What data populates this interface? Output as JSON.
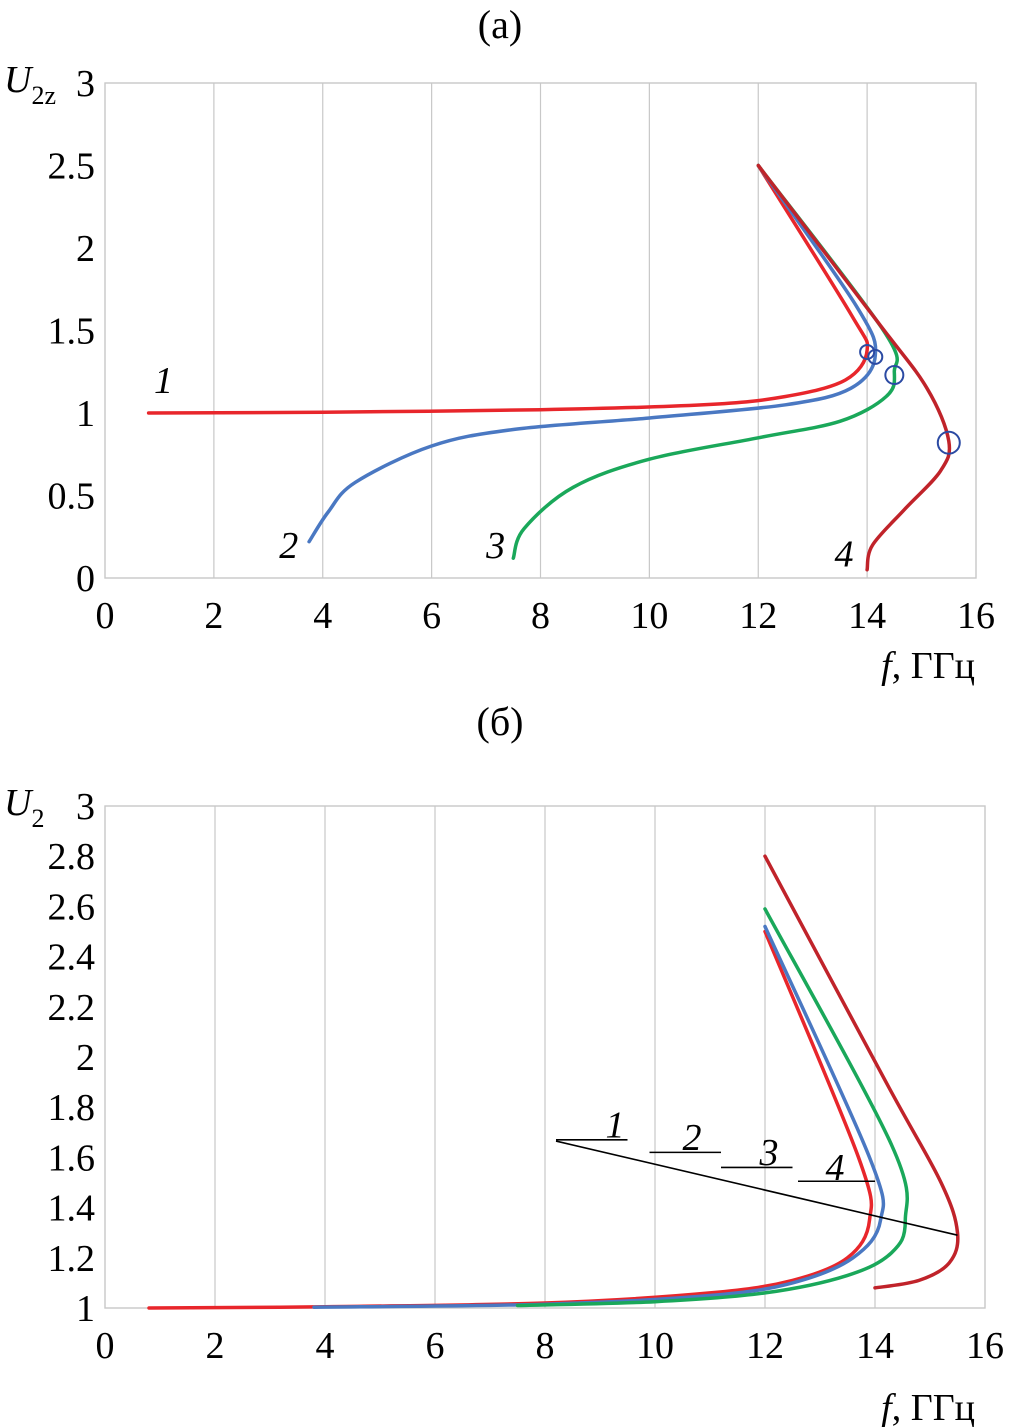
{
  "colors": {
    "series_1": "#e8262b",
    "series_2": "#4a78c2",
    "series_3": "#1aa85a",
    "series_4": "#c0232a",
    "grid": "#c8c8c8",
    "marker": "#2b4aa3",
    "leader": "#000000"
  },
  "chart_data": [
    {
      "type": "line",
      "panel_label": "(а)",
      "ylabel": {
        "main": "U",
        "sub": "2z"
      },
      "xlabel": {
        "main": "f",
        "rest": ", ГГц"
      },
      "xlim": [
        0,
        16
      ],
      "ylim": [
        0,
        3
      ],
      "x_ticks": [
        "0",
        "2",
        "4",
        "6",
        "8",
        "10",
        "12",
        "14",
        "16"
      ],
      "y_ticks": [
        "0",
        "0.5",
        "1",
        "1.5",
        "2",
        "2.5",
        "3"
      ],
      "grid": "vertical",
      "series": [
        {
          "label": "1",
          "label_at": [
            0.9,
            1.12
          ],
          "points": [
            [
              0.8,
              1.0
            ],
            [
              4,
              1.005
            ],
            [
              8,
              1.02
            ],
            [
              11,
              1.05
            ],
            [
              12.5,
              1.1
            ],
            [
              13.6,
              1.2
            ],
            [
              14.0,
              1.38
            ],
            [
              13.7,
              1.6
            ],
            [
              12,
              2.5
            ]
          ],
          "marker": [
            14.0,
            1.37
          ]
        },
        {
          "label": "2",
          "label_at": [
            3.2,
            0.12
          ],
          "points": [
            [
              3.75,
              0.22
            ],
            [
              4.1,
              0.4
            ],
            [
              4.6,
              0.58
            ],
            [
              6,
              0.8
            ],
            [
              7.5,
              0.9
            ],
            [
              10,
              0.97
            ],
            [
              12.5,
              1.05
            ],
            [
              13.7,
              1.15
            ],
            [
              14.15,
              1.35
            ],
            [
              13.8,
              1.65
            ],
            [
              12,
              2.5
            ]
          ],
          "marker": [
            14.15,
            1.34
          ]
        },
        {
          "label": "3",
          "label_at": [
            7.0,
            0.12
          ],
          "points": [
            [
              7.5,
              0.12
            ],
            [
              7.7,
              0.3
            ],
            [
              8.6,
              0.55
            ],
            [
              10,
              0.72
            ],
            [
              12,
              0.85
            ],
            [
              13.5,
              0.95
            ],
            [
              14.35,
              1.1
            ],
            [
              14.5,
              1.25
            ],
            [
              14.3,
              1.5
            ],
            [
              12,
              2.5
            ]
          ],
          "marker": [
            14.5,
            1.23
          ]
        },
        {
          "label": "4",
          "label_at": [
            13.4,
            0.07
          ],
          "points": [
            [
              14.0,
              0.05
            ],
            [
              14.1,
              0.2
            ],
            [
              14.7,
              0.42
            ],
            [
              15.35,
              0.65
            ],
            [
              15.5,
              0.83
            ],
            [
              15.1,
              1.15
            ],
            [
              14.2,
              1.55
            ],
            [
              12,
              2.5
            ]
          ],
          "marker": [
            15.5,
            0.82
          ]
        }
      ]
    },
    {
      "type": "line",
      "panel_label": "(б)",
      "ylabel": {
        "main": "U",
        "sub": "2"
      },
      "xlabel": {
        "main": "f",
        "rest": ", ГГц"
      },
      "xlim": [
        0,
        16
      ],
      "ylim": [
        1,
        3
      ],
      "x_ticks": [
        "0",
        "2",
        "4",
        "6",
        "8",
        "10",
        "12",
        "14",
        "16"
      ],
      "y_ticks": [
        "1",
        "1.2",
        "1.4",
        "1.6",
        "1.8",
        "2",
        "2.2",
        "2.4",
        "2.6",
        "2.8",
        "3"
      ],
      "grid": "vertical",
      "series": [
        {
          "label": "1",
          "points": [
            [
              0.8,
              1.0
            ],
            [
              4,
              1.005
            ],
            [
              8,
              1.02
            ],
            [
              11,
              1.06
            ],
            [
              12.5,
              1.11
            ],
            [
              13.5,
              1.2
            ],
            [
              13.9,
              1.35
            ],
            [
              13.7,
              1.6
            ],
            [
              12,
              2.5
            ]
          ]
        },
        {
          "label": "2",
          "points": [
            [
              3.8,
              1.003
            ],
            [
              8,
              1.015
            ],
            [
              11,
              1.05
            ],
            [
              12.5,
              1.1
            ],
            [
              13.6,
              1.2
            ],
            [
              14.1,
              1.35
            ],
            [
              13.9,
              1.6
            ],
            [
              12,
              2.52
            ]
          ]
        },
        {
          "label": "3",
          "points": [
            [
              7.5,
              1.01
            ],
            [
              10,
              1.025
            ],
            [
              12,
              1.06
            ],
            [
              13.5,
              1.13
            ],
            [
              14.3,
              1.22
            ],
            [
              14.55,
              1.35
            ],
            [
              14.3,
              1.65
            ],
            [
              12,
              2.59
            ]
          ]
        },
        {
          "label": "4",
          "points": [
            [
              14.0,
              1.08
            ],
            [
              14.8,
              1.11
            ],
            [
              15.35,
              1.18
            ],
            [
              15.5,
              1.3
            ],
            [
              15.2,
              1.5
            ],
            [
              14.2,
              1.9
            ],
            [
              12,
              2.8
            ]
          ]
        }
      ],
      "leader_line": {
        "from": [
          8.2,
          1.665
        ],
        "to": [
          15.5,
          1.29
        ],
        "labels": [
          {
            "text": "1",
            "at": [
              9.1,
              1.68
            ],
            "underline": [
              8.2,
              9.5,
              1.67
            ]
          },
          {
            "text": "2",
            "at": [
              10.5,
              1.63
            ],
            "underline": [
              9.9,
              11.2,
              1.62
            ]
          },
          {
            "text": "3",
            "at": [
              11.9,
              1.57
            ],
            "underline": [
              11.2,
              12.5,
              1.56
            ]
          },
          {
            "text": "4",
            "at": [
              13.1,
              1.51
            ],
            "underline": [
              12.6,
              14.0,
              1.505
            ]
          }
        ]
      }
    }
  ]
}
